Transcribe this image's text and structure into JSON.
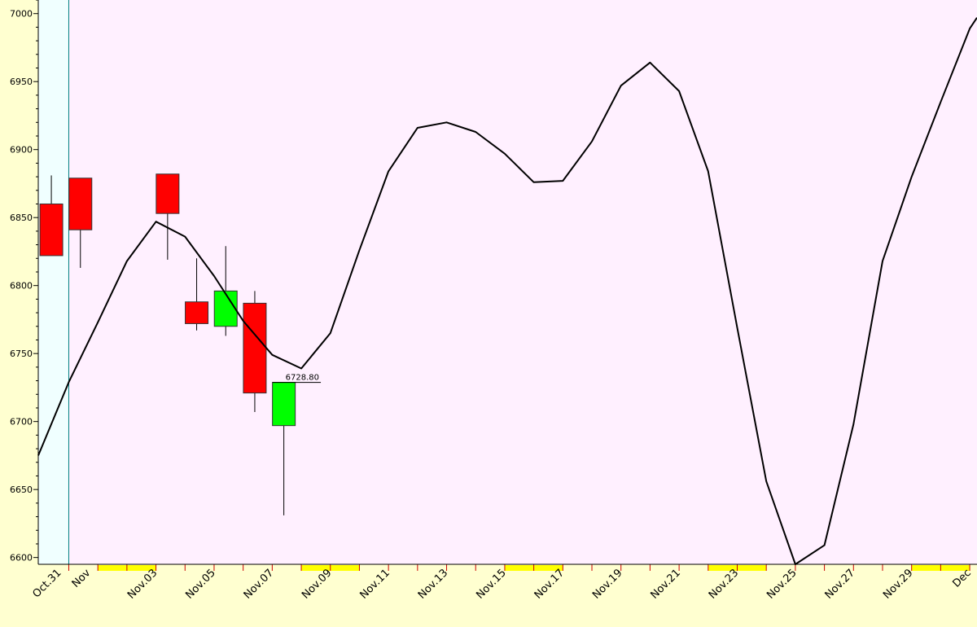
{
  "colors": {
    "page_bg": "#ffffd0",
    "plot_bg": "#fff0ff",
    "highlight_bg": "#f0ffff",
    "bear": "#ff0000",
    "bull": "#00ff00",
    "line": "#000000",
    "tick": "#cc0000",
    "weekend": "#ffff00"
  },
  "chart_data": {
    "type": "line",
    "title": "",
    "xlabel": "",
    "ylabel": "",
    "ylim": [
      6595,
      7010
    ],
    "y_ticks": [
      6600,
      6650,
      6700,
      6750,
      6800,
      6850,
      6900,
      6950,
      7000
    ],
    "y_tick_labels": [
      "6600",
      "6650",
      "6700",
      "6750",
      "6800",
      "6850",
      "6900",
      "6950",
      "7000"
    ],
    "x_tick_labels": [
      "Oct.31",
      "Nov",
      "Nov.03",
      "Nov.05",
      "Nov.07",
      "Nov.09",
      "Nov.11",
      "Nov.13",
      "Nov.15",
      "Nov.17",
      "Nov.19",
      "Nov.21",
      "Nov.23",
      "Nov.25",
      "Nov.27",
      "Nov.29",
      "Dec"
    ],
    "x_tick_days": [
      -0.3,
      0.7,
      3,
      5,
      7,
      9,
      11,
      13,
      15,
      17,
      19,
      21,
      23,
      25,
      27,
      29,
      31
    ],
    "x_range_days": [
      -1.05,
      31.25
    ],
    "highlight_days": [
      -1.05,
      0
    ],
    "weekend_days": [
      [
        1,
        3
      ],
      [
        8,
        10
      ],
      [
        15,
        17
      ],
      [
        22,
        24
      ],
      [
        29,
        31
      ]
    ],
    "candles": [
      {
        "day": -0.6,
        "open": 6860,
        "high": 6881,
        "low": 6822,
        "close": 6822
      },
      {
        "day": 0.4,
        "open": 6879,
        "high": 6879,
        "low": 6813,
        "close": 6841
      },
      {
        "day": 3.4,
        "open": 6882,
        "high": 6882,
        "low": 6819,
        "close": 6853
      },
      {
        "day": 4.4,
        "open": 6788,
        "high": 6820,
        "low": 6767,
        "close": 6772
      },
      {
        "day": 5.4,
        "open": 6770,
        "high": 6829,
        "low": 6763,
        "close": 6796
      },
      {
        "day": 6.4,
        "open": 6787,
        "high": 6796,
        "low": 6707,
        "close": 6721
      },
      {
        "day": 7.4,
        "open": 6697,
        "high": 6728.8,
        "low": 6631,
        "close": 6728.8
      }
    ],
    "last_price": {
      "label": "6728.80",
      "value": 6728.8,
      "from_day": 7.4,
      "to_day": 8.0
    },
    "series": [
      {
        "x": [
          -1.05,
          0.0,
          1.0,
          2.0,
          3.0,
          4.0,
          5.0,
          6.0,
          7.0,
          8.0,
          9.0,
          10.0,
          11.0,
          12.0,
          13.0,
          14.0,
          15.0,
          16.0,
          17.0,
          18.0,
          19.0,
          20.0,
          21.0,
          22.0,
          23.0,
          24.0,
          25.0,
          26.0,
          27.0,
          28.0,
          29.0,
          30.0,
          31.0,
          31.25
        ],
        "y": [
          6675,
          6729,
          6773,
          6818,
          6847,
          6836,
          6807,
          6774,
          6749,
          6739,
          6765,
          6826,
          6884,
          6916,
          6920,
          6913,
          6897,
          6876,
          6877,
          6906,
          6947,
          6964,
          6943,
          6884,
          6769,
          6656,
          6595,
          6609,
          6698,
          6818,
          6880,
          6935,
          6989,
          6997
        ]
      }
    ]
  }
}
